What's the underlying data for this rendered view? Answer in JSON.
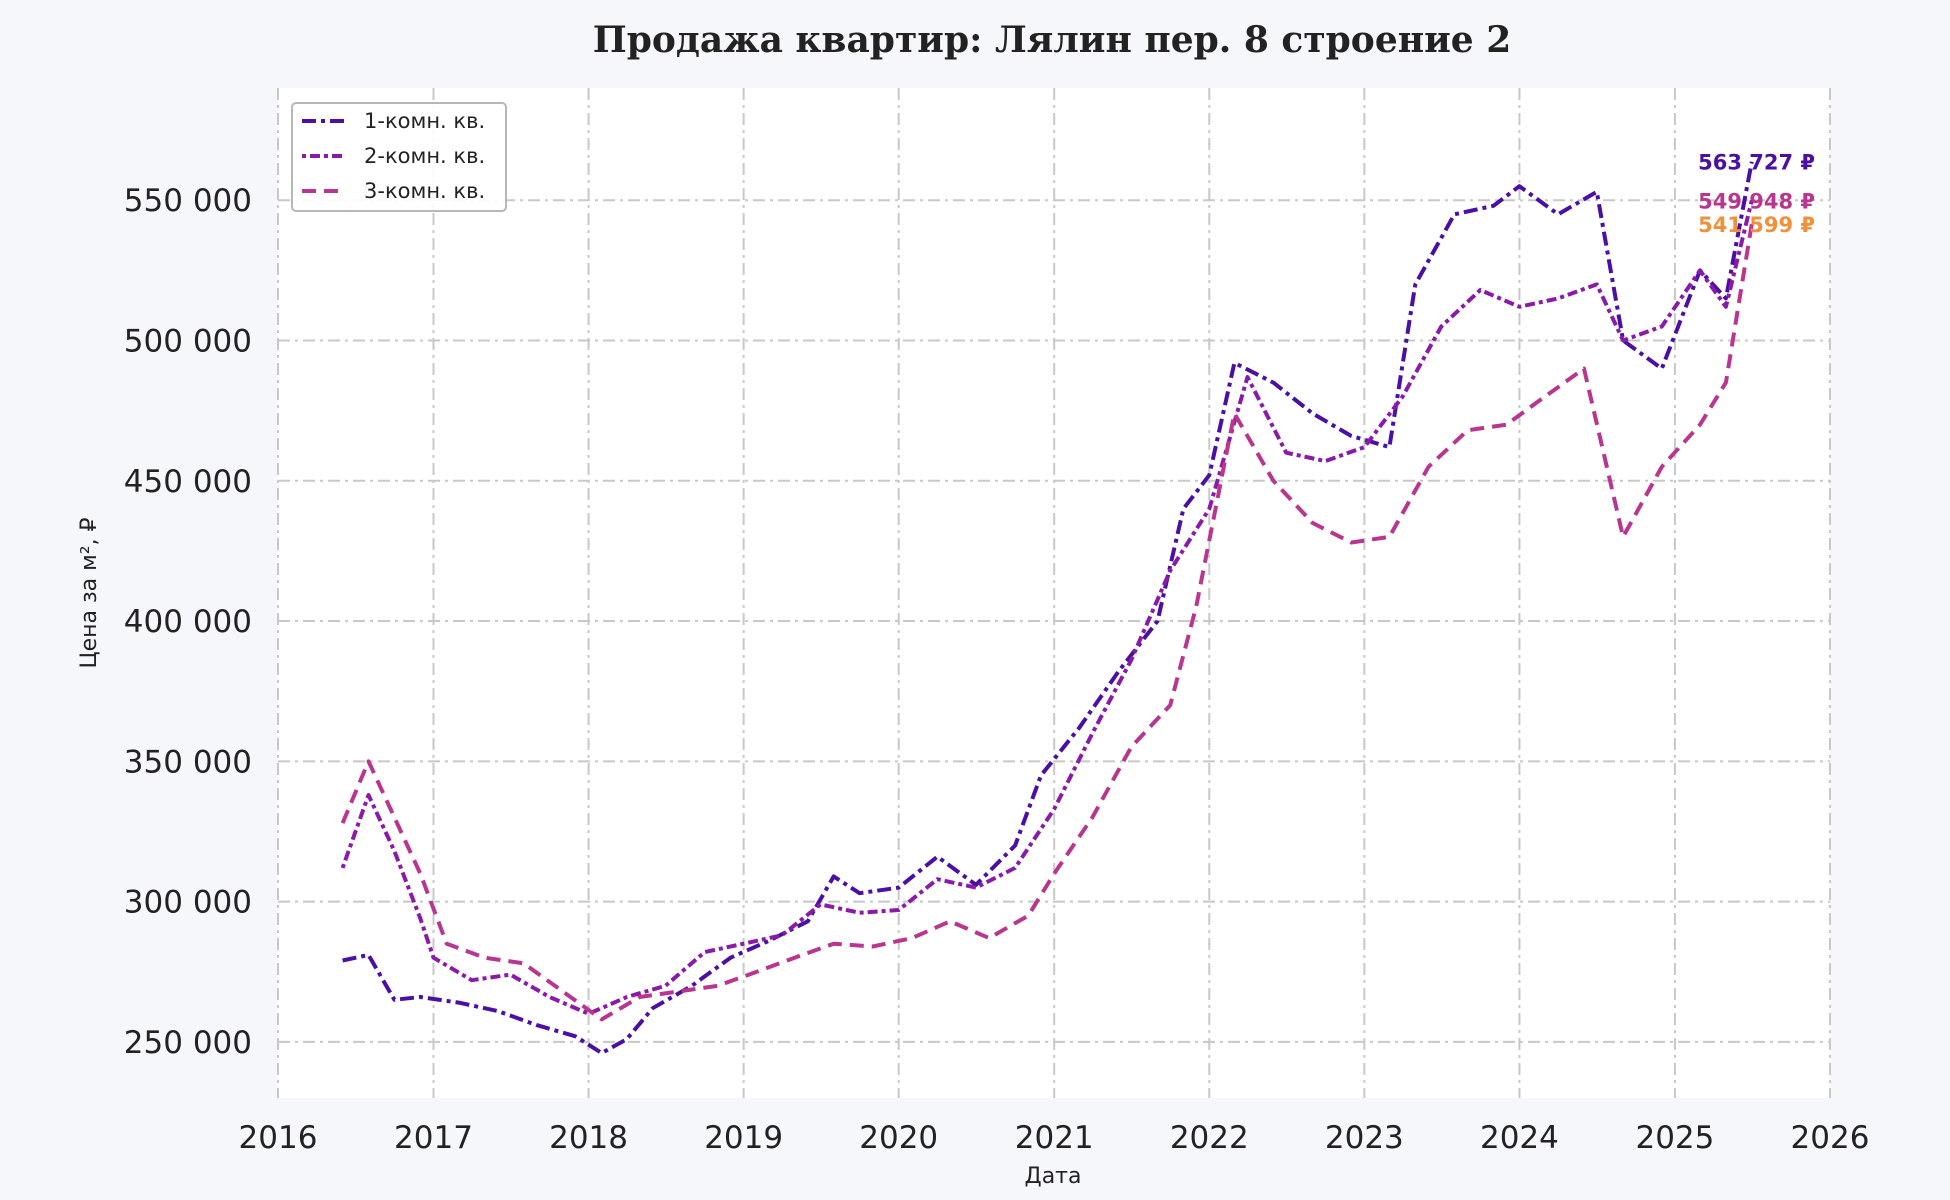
{
  "chart_data": {
    "type": "line",
    "title": "Продажа квартир: Лялин пер. 8 строение 2",
    "xlabel": "Дата",
    "ylabel": "Цена за м², ₽",
    "xlim": [
      "2016-01-01",
      "2026-01-01"
    ],
    "ylim": [
      230000,
      590000
    ],
    "x_ticks": [
      {
        "date": "2016-01-01",
        "label": "2016"
      },
      {
        "date": "2017-01-01",
        "label": "2017"
      },
      {
        "date": "2018-01-01",
        "label": "2018"
      },
      {
        "date": "2019-01-01",
        "label": "2019"
      },
      {
        "date": "2020-01-01",
        "label": "2020"
      },
      {
        "date": "2021-01-01",
        "label": "2021"
      },
      {
        "date": "2022-01-01",
        "label": "2022"
      },
      {
        "date": "2023-01-01",
        "label": "2023"
      },
      {
        "date": "2024-01-01",
        "label": "2024"
      },
      {
        "date": "2025-01-01",
        "label": "2025"
      },
      {
        "date": "2026-01-01",
        "label": "2026"
      }
    ],
    "y_ticks": [
      {
        "value": 250000,
        "label": "250 000"
      },
      {
        "value": 300000,
        "label": "300 000"
      },
      {
        "value": 350000,
        "label": "350 000"
      },
      {
        "value": 400000,
        "label": "400 000"
      },
      {
        "value": 450000,
        "label": "450 000"
      },
      {
        "value": 500000,
        "label": "500 000"
      },
      {
        "value": 550000,
        "label": "550 000"
      }
    ],
    "grid": true,
    "legend_position": "top-left",
    "series": [
      {
        "name": "1-комн. кв.",
        "color": "#4a0fa3",
        "dash": "dashdot",
        "points": [
          [
            "2016-06-01",
            279000
          ],
          [
            "2016-08-01",
            281000
          ],
          [
            "2016-10-01",
            265000
          ],
          [
            "2016-12-01",
            266000
          ],
          [
            "2017-03-01",
            264000
          ],
          [
            "2017-06-01",
            261000
          ],
          [
            "2017-09-01",
            256000
          ],
          [
            "2017-12-01",
            252000
          ],
          [
            "2018-02-01",
            246000
          ],
          [
            "2018-04-01",
            251000
          ],
          [
            "2018-06-01",
            262000
          ],
          [
            "2018-09-01",
            270000
          ],
          [
            "2018-12-01",
            280000
          ],
          [
            "2019-03-01",
            286000
          ],
          [
            "2019-06-01",
            293000
          ],
          [
            "2019-08-01",
            309000
          ],
          [
            "2019-10-01",
            303000
          ],
          [
            "2020-01-01",
            305000
          ],
          [
            "2020-04-01",
            316000
          ],
          [
            "2020-07-01",
            306000
          ],
          [
            "2020-10-01",
            320000
          ],
          [
            "2020-12-01",
            345000
          ],
          [
            "2021-03-01",
            362000
          ],
          [
            "2021-06-01",
            382000
          ],
          [
            "2021-09-01",
            400000
          ],
          [
            "2021-11-01",
            440000
          ],
          [
            "2022-01-01",
            452000
          ],
          [
            "2022-03-01",
            492000
          ],
          [
            "2022-06-01",
            485000
          ],
          [
            "2022-09-01",
            474000
          ],
          [
            "2022-12-01",
            466000
          ],
          [
            "2023-03-01",
            462000
          ],
          [
            "2023-05-01",
            520000
          ],
          [
            "2023-08-01",
            545000
          ],
          [
            "2023-11-01",
            548000
          ],
          [
            "2024-01-01",
            555000
          ],
          [
            "2024-04-01",
            545000
          ],
          [
            "2024-07-01",
            553000
          ],
          [
            "2024-09-01",
            500000
          ],
          [
            "2024-12-01",
            490000
          ],
          [
            "2025-03-01",
            525000
          ],
          [
            "2025-05-01",
            515000
          ],
          [
            "2025-07-01",
            563727
          ]
        ]
      },
      {
        "name": "2-комн. кв.",
        "color": "#8a1aa8",
        "dash": "dot",
        "points": [
          [
            "2016-06-01",
            312000
          ],
          [
            "2016-08-01",
            338000
          ],
          [
            "2016-10-01",
            318000
          ],
          [
            "2016-12-01",
            294000
          ],
          [
            "2017-01-01",
            280000
          ],
          [
            "2017-04-01",
            272000
          ],
          [
            "2017-07-01",
            274000
          ],
          [
            "2017-10-01",
            266000
          ],
          [
            "2018-01-01",
            260000
          ],
          [
            "2018-04-01",
            266000
          ],
          [
            "2018-07-01",
            270000
          ],
          [
            "2018-10-01",
            282000
          ],
          [
            "2019-01-01",
            285000
          ],
          [
            "2019-04-01",
            288000
          ],
          [
            "2019-07-01",
            299000
          ],
          [
            "2019-10-01",
            296000
          ],
          [
            "2020-01-01",
            297000
          ],
          [
            "2020-04-01",
            308000
          ],
          [
            "2020-07-01",
            305000
          ],
          [
            "2020-10-01",
            312000
          ],
          [
            "2021-01-01",
            333000
          ],
          [
            "2021-04-01",
            360000
          ],
          [
            "2021-07-01",
            386000
          ],
          [
            "2021-10-01",
            418000
          ],
          [
            "2022-01-01",
            440000
          ],
          [
            "2022-04-01",
            487000
          ],
          [
            "2022-07-01",
            460000
          ],
          [
            "2022-10-01",
            457000
          ],
          [
            "2023-01-01",
            462000
          ],
          [
            "2023-04-01",
            480000
          ],
          [
            "2023-07-01",
            505000
          ],
          [
            "2023-10-01",
            518000
          ],
          [
            "2024-01-01",
            512000
          ],
          [
            "2024-04-01",
            515000
          ],
          [
            "2024-07-01",
            520000
          ],
          [
            "2024-09-01",
            500000
          ],
          [
            "2024-12-01",
            505000
          ],
          [
            "2025-03-01",
            525000
          ],
          [
            "2025-05-01",
            512000
          ],
          [
            "2025-07-01",
            549948
          ]
        ]
      },
      {
        "name": "3-комн. кв.",
        "color": "#b8368f",
        "dash": "dash",
        "points": [
          [
            "2016-06-01",
            328000
          ],
          [
            "2016-08-01",
            350000
          ],
          [
            "2016-10-01",
            330000
          ],
          [
            "2016-12-01",
            310000
          ],
          [
            "2017-02-01",
            285000
          ],
          [
            "2017-05-01",
            280000
          ],
          [
            "2017-08-01",
            278000
          ],
          [
            "2017-11-01",
            268000
          ],
          [
            "2018-02-01",
            258000
          ],
          [
            "2018-05-01",
            266000
          ],
          [
            "2018-08-01",
            268000
          ],
          [
            "2018-11-01",
            270000
          ],
          [
            "2019-02-01",
            275000
          ],
          [
            "2019-05-01",
            280000
          ],
          [
            "2019-08-01",
            285000
          ],
          [
            "2019-11-01",
            284000
          ],
          [
            "2020-02-01",
            287000
          ],
          [
            "2020-05-01",
            293000
          ],
          [
            "2020-08-01",
            287000
          ],
          [
            "2020-11-01",
            295000
          ],
          [
            "2021-01-01",
            310000
          ],
          [
            "2021-04-01",
            330000
          ],
          [
            "2021-07-01",
            355000
          ],
          [
            "2021-10-01",
            370000
          ],
          [
            "2021-12-01",
            405000
          ],
          [
            "2022-03-01",
            474000
          ],
          [
            "2022-06-01",
            450000
          ],
          [
            "2022-09-01",
            435000
          ],
          [
            "2022-12-01",
            428000
          ],
          [
            "2023-03-01",
            430000
          ],
          [
            "2023-06-01",
            455000
          ],
          [
            "2023-09-01",
            468000
          ],
          [
            "2023-12-01",
            470000
          ],
          [
            "2024-03-01",
            480000
          ],
          [
            "2024-06-01",
            490000
          ],
          [
            "2024-09-01",
            430000
          ],
          [
            "2024-12-01",
            455000
          ],
          [
            "2025-03-01",
            470000
          ],
          [
            "2025-05-01",
            485000
          ],
          [
            "2025-07-01",
            541599
          ]
        ]
      }
    ],
    "end_labels": [
      {
        "text": "563 727 ₽",
        "color": "#4a0fa3",
        "value": 563727
      },
      {
        "text": "549 948 ₽",
        "color": "#b8368f",
        "value": 549948
      },
      {
        "text": "541 599 ₽",
        "color": "#f0903a",
        "value": 541599
      }
    ]
  }
}
